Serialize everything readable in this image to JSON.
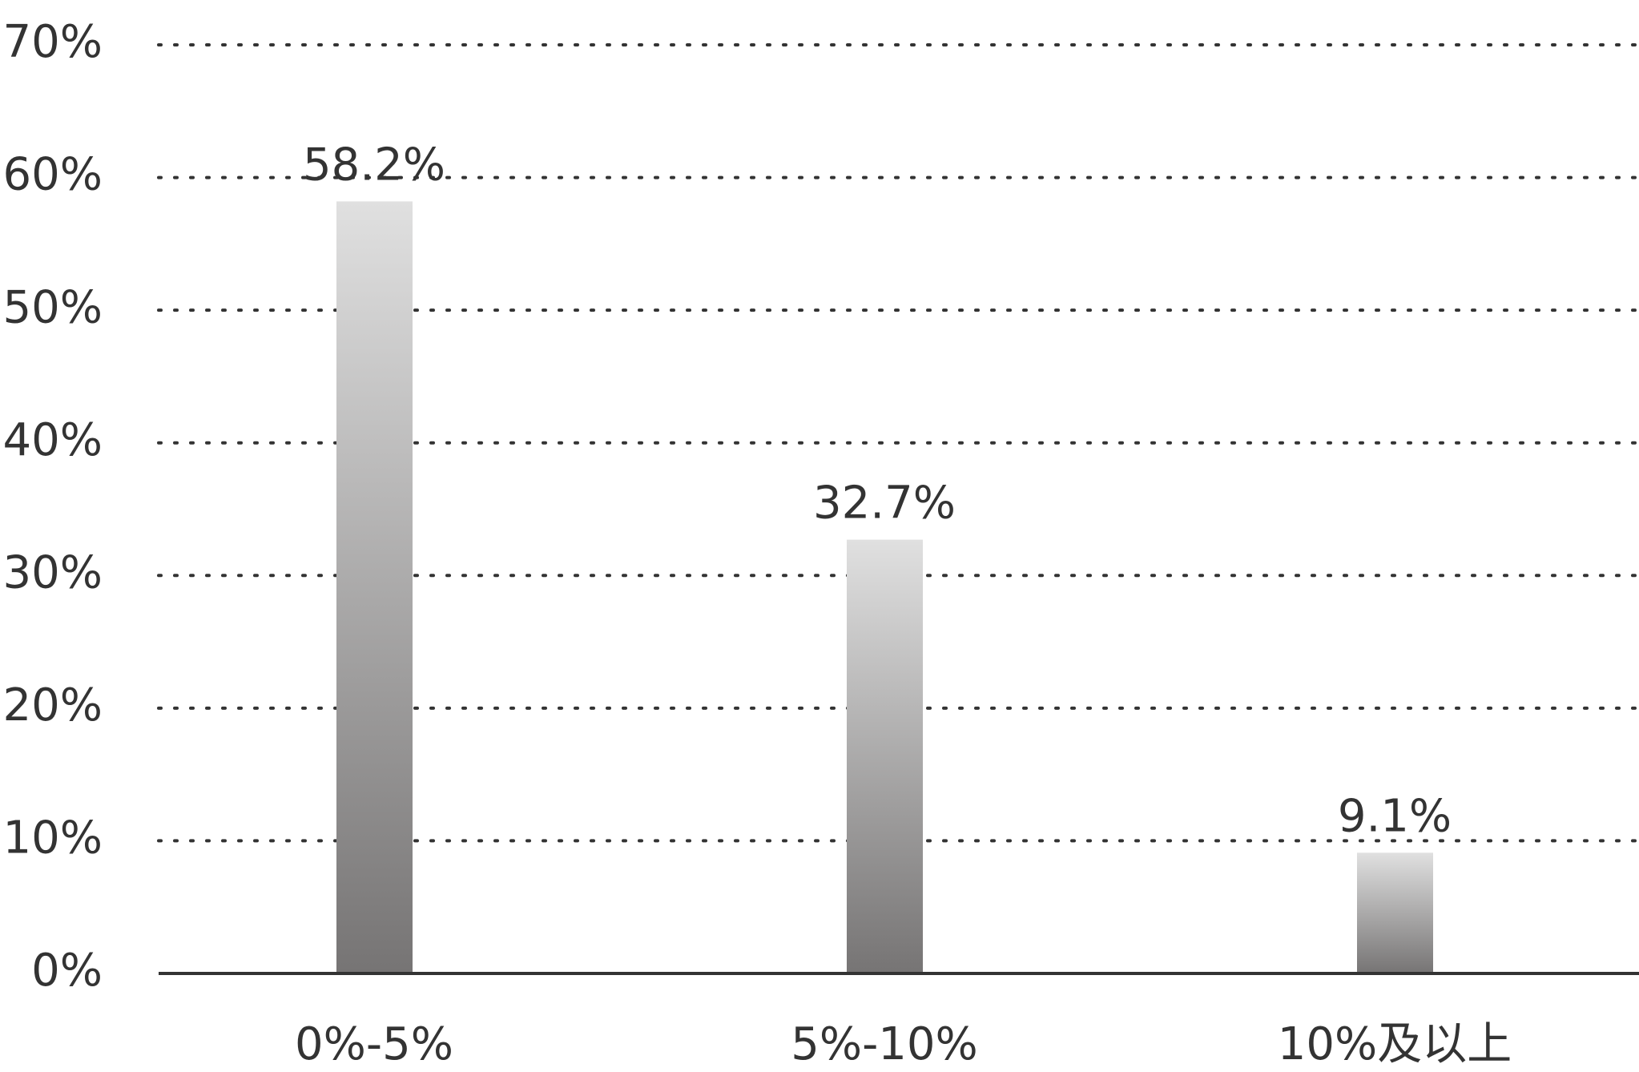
{
  "chart_data": {
    "type": "bar",
    "categories": [
      "0%-5%",
      "5%-10%",
      "10%及以上"
    ],
    "values": [
      58.2,
      32.7,
      9.1
    ],
    "value_labels": [
      "58.2%",
      "32.7%",
      "9.1%"
    ],
    "colors": [
      "#e0e0e0",
      "#767474"
    ],
    "ylim": [
      0,
      70
    ],
    "yticks": [
      {
        "value": 0,
        "label": "0%"
      },
      {
        "value": 10,
        "label": "10%"
      },
      {
        "value": 20,
        "label": "20%"
      },
      {
        "value": 30,
        "label": "30%"
      },
      {
        "value": 40,
        "label": "40%"
      },
      {
        "value": 50,
        "label": "50%"
      },
      {
        "value": 60,
        "label": "60%"
      },
      {
        "value": 70,
        "label": "70%"
      }
    ],
    "grid": true
  }
}
